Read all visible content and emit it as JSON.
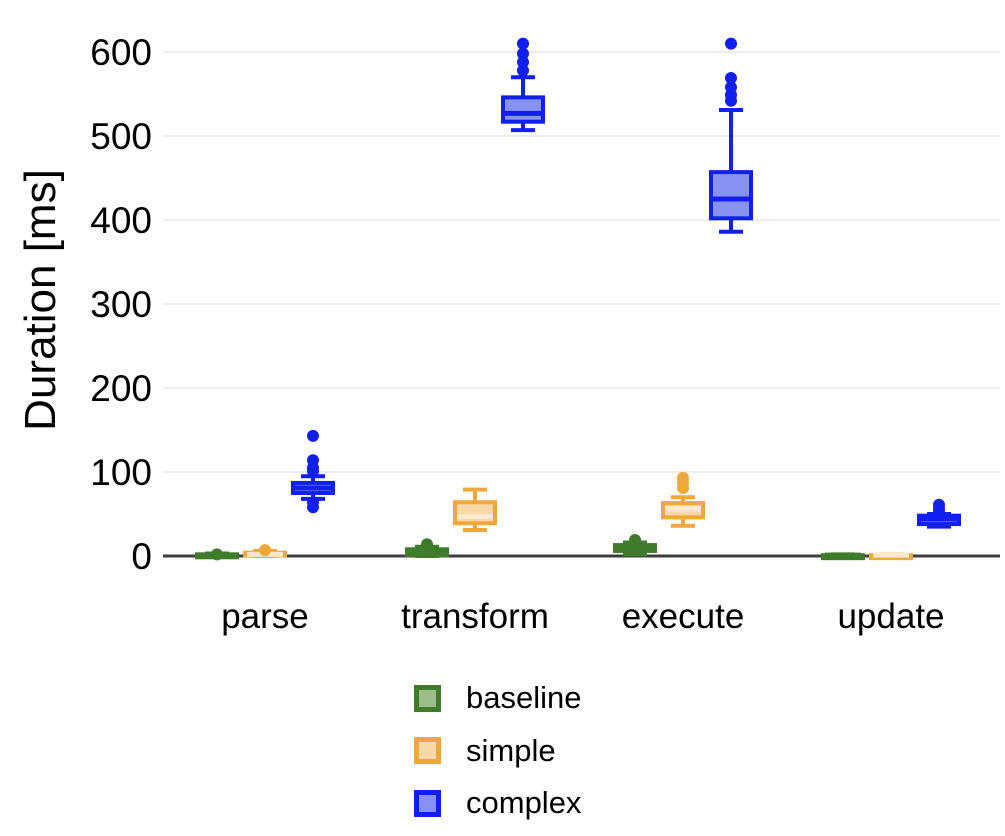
{
  "chart_data": {
    "type": "boxplot",
    "title": "",
    "xlabel": "",
    "ylabel": "Duration [ms]",
    "categories": [
      "parse",
      "transform",
      "execute",
      "update"
    ],
    "yticks": [
      0,
      100,
      200,
      300,
      400,
      500,
      600
    ],
    "ylim": [
      0,
      625
    ],
    "grid": "horizontal-light-gray",
    "legend_position": "bottom-center",
    "series": [
      {
        "name": "baseline",
        "border_color": "#3e7c2b",
        "fill_color": "#9cbc88",
        "median_color": "#3e7c2b",
        "boxes": [
          {
            "category": "parse",
            "whisker_low": 0,
            "q1": 0,
            "median": 1,
            "q3": 2,
            "whisker_high": 3,
            "outliers": [
              2
            ]
          },
          {
            "category": "transform",
            "whisker_low": 0,
            "q1": 1,
            "median": 4,
            "q3": 8,
            "whisker_high": 11,
            "outliers": [
              14
            ]
          },
          {
            "category": "execute",
            "whisker_low": 2,
            "q1": 6,
            "median": 10,
            "q3": 13,
            "whisker_high": 16,
            "outliers": [
              19
            ]
          },
          {
            "category": "update",
            "whisker_low": 0,
            "q1": 0,
            "median": 1,
            "q3": 1,
            "whisker_high": 2,
            "outliers": []
          }
        ]
      },
      {
        "name": "simple",
        "border_color": "#f0a73c",
        "fill_color": "#f8d9a5",
        "median_color": "#fbe9cd",
        "boxes": [
          {
            "category": "parse",
            "whisker_low": 0,
            "q1": 1,
            "median": 2,
            "q3": 4,
            "whisker_high": 6,
            "outliers": [
              7
            ]
          },
          {
            "category": "transform",
            "whisker_low": 31,
            "q1": 39,
            "median": 47,
            "q3": 64,
            "whisker_high": 79,
            "outliers": []
          },
          {
            "category": "execute",
            "whisker_low": 36,
            "q1": 46,
            "median": 56,
            "q3": 63,
            "whisker_high": 70,
            "outliers": [
              81,
              88,
              93
            ]
          },
          {
            "category": "update",
            "whisker_low": 0,
            "q1": 0,
            "median": 1,
            "q3": 1,
            "whisker_high": 2,
            "outliers": []
          }
        ]
      },
      {
        "name": "complex",
        "border_color": "#1120ee",
        "fill_color": "#8793f4",
        "median_color": "#1120ee",
        "boxes": [
          {
            "category": "parse",
            "whisker_low": 68,
            "q1": 75,
            "median": 81,
            "q3": 87,
            "whisker_high": 95,
            "outliers": [
              58,
              64,
              101,
              105,
              114,
              143
            ]
          },
          {
            "category": "transform",
            "whisker_low": 507,
            "q1": 517,
            "median": 527,
            "q3": 546,
            "whisker_high": 570,
            "outliers": [
              578,
              588,
              598,
              610
            ]
          },
          {
            "category": "execute",
            "whisker_low": 386,
            "q1": 402,
            "median": 425,
            "q3": 457,
            "whisker_high": 531,
            "outliers": [
              542,
              549,
              558,
              569,
              610
            ]
          },
          {
            "category": "update",
            "whisker_low": 35,
            "q1": 38,
            "median": 44,
            "q3": 48,
            "whisker_high": 50,
            "outliers": [
              53,
              56,
              61
            ]
          }
        ]
      }
    ]
  },
  "colors": {
    "background": "#ffffff",
    "axis_line": "#3d3d3d",
    "gridline": "#ececec",
    "text": "#000000"
  }
}
